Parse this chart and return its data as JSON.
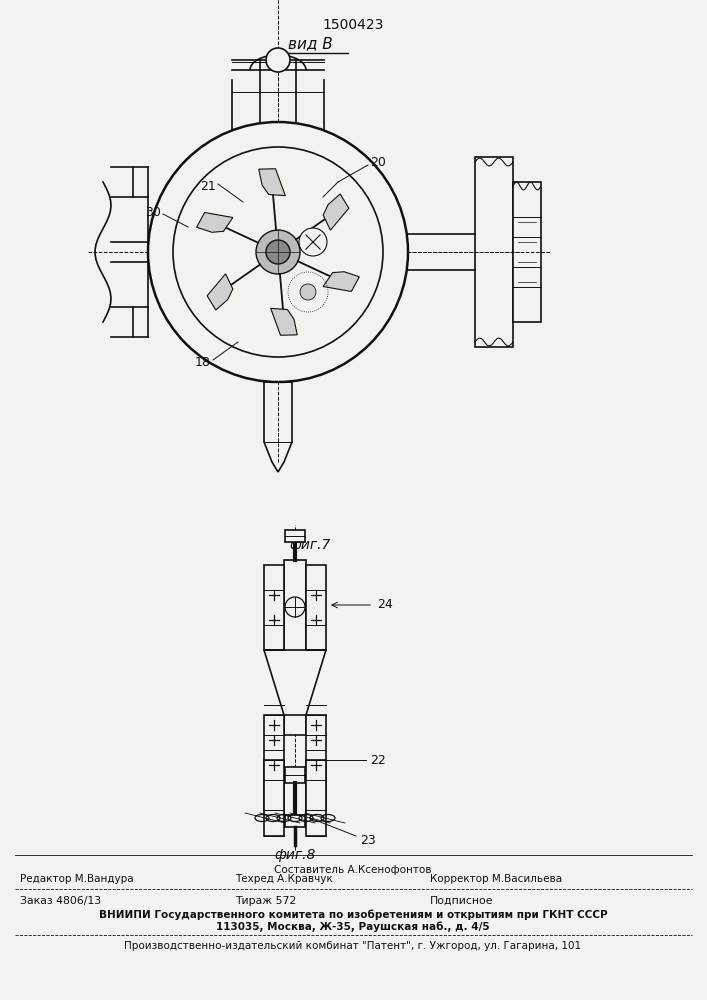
{
  "patent_number": "1500423",
  "view_label": "вид В",
  "fig7_label": "фиг.7",
  "fig8_label": "фиг.8",
  "bg_color": "#f2f2ee",
  "line_color": "#111111",
  "label_21": "21",
  "label_20": "20",
  "label_30": "30",
  "label_18": "18",
  "label_24": "24",
  "label_22": "22",
  "label_23": "23",
  "footer_line1_col1": "Составитель А.Ксенофонтов",
  "footer_line2_col1": "Редактор М.Вандура",
  "footer_line2_col2": "Техред А.Кравчук",
  "footer_line2_col3": "Корректор М.Васильева",
  "footer_line3_col1": "Заказ 4806/13",
  "footer_line3_col2": "Тираж 572",
  "footer_line3_col3": "Подписное",
  "footer_line4": "ВНИИПИ Государственного комитета по изобретениям и открытиям при ГКНТ СССР",
  "footer_line5": "113035, Москва, Ж-35, Раушская наб., д. 4/5",
  "footer_line6": "Производственно-издательский комбинат \"Патент\", г. Ужгород, ул. Гагарина, 101"
}
